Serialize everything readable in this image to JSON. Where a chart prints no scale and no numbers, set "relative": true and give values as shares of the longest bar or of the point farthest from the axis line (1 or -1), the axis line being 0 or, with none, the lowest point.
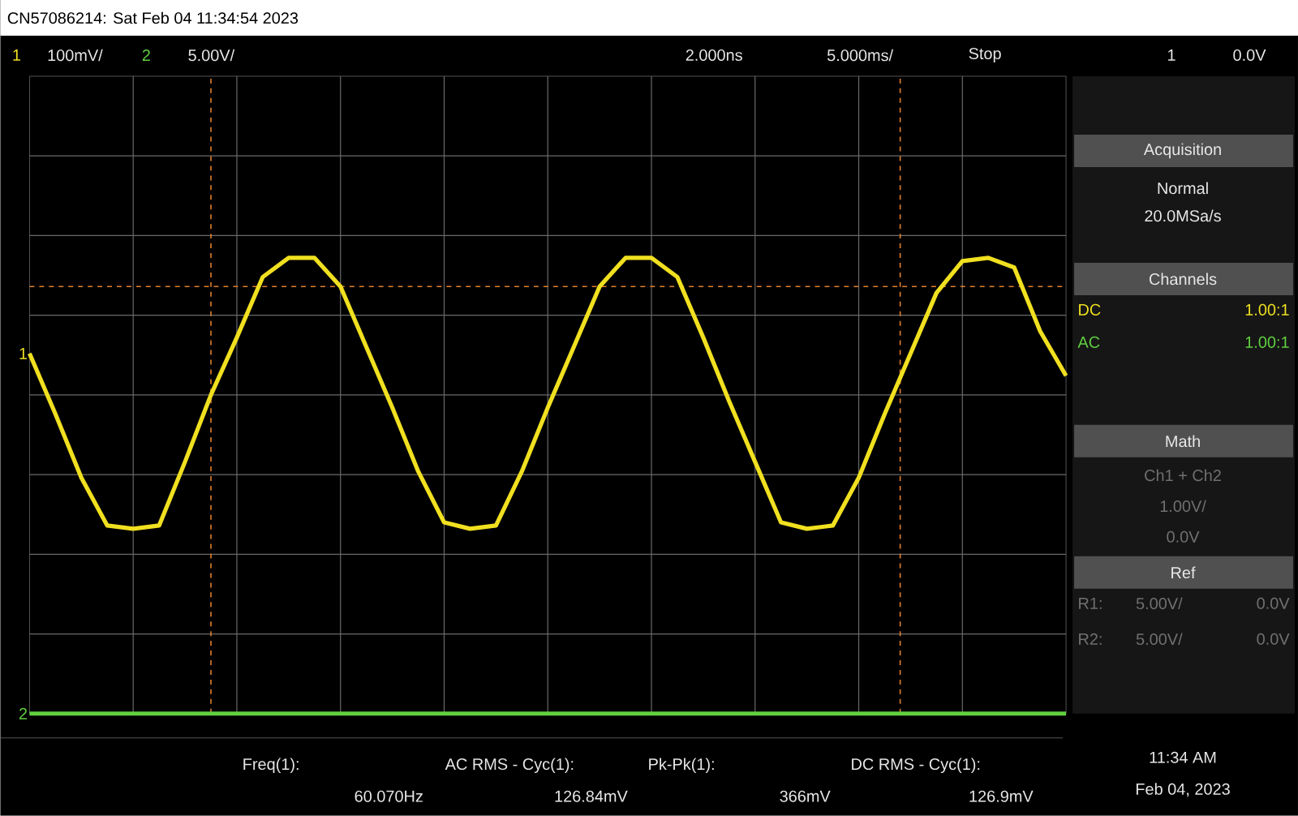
{
  "chart_data": {
    "type": "line",
    "relative": true,
    "title": "CN57086214: Sat Feb 04 11:34:54 2023",
    "categories": [
      null,
      null,
      null,
      null,
      null,
      null,
      null,
      null,
      null,
      null,
      null,
      null,
      null,
      null,
      null,
      null,
      null,
      null,
      null,
      null,
      null,
      null,
      null,
      null,
      null,
      null,
      null,
      null,
      null,
      null,
      null,
      null,
      null,
      null,
      null,
      null,
      null,
      null,
      null,
      null,
      null
    ],
    "series": [
      {
        "name": "1",
        "color": "#f0e020",
        "values": [
          0.13,
          -0.06,
          -0.26,
          -0.41,
          -0.42,
          -0.41,
          -0.21,
          0,
          0.18,
          0.37,
          0.43,
          0.43,
          0.34,
          0.15,
          -0.04,
          -0.24,
          -0.4,
          -0.42,
          -0.41,
          -0.24,
          -0.04,
          0.15,
          0.34,
          0.43,
          0.43,
          0.37,
          0.18,
          -0.02,
          -0.21,
          -0.4,
          -0.42,
          -0.41,
          -0.26,
          -0.06,
          0.13,
          0.32,
          0.42,
          0.43,
          0.4,
          0.2,
          0.06
        ]
      },
      {
        "name": "2",
        "color": "#60d040",
        "values": [
          -1,
          -1,
          -1,
          -1,
          -1,
          -1,
          -1,
          -1,
          -1,
          -1,
          -1,
          -1,
          -1,
          -1,
          -1,
          -1,
          -1,
          -1,
          -1,
          -1,
          -1,
          -1,
          -1,
          -1,
          -1,
          -1,
          -1,
          -1,
          -1,
          -1,
          -1,
          -1,
          -1,
          -1,
          -1,
          -1,
          -1,
          -1,
          -1,
          -1,
          -1
        ]
      }
    ],
    "ref_lines": [
      {
        "axis": "y",
        "value": 0.34,
        "color": "#e08030",
        "line_style": "dashed"
      }
    ],
    "grid": true,
    "legend": false,
    "marker": "none",
    "line_style": "solid",
    "annotations": [
      "1",
      "100mV/",
      "2",
      "5.00V/",
      "2.000ns",
      "5.000ms/",
      "Stop",
      "1",
      "0.0V",
      "Acquisition",
      "Normal",
      "20.0MSa/s",
      "Channels",
      "DC",
      "1.00:1",
      "AC",
      "1.00:1",
      "Math",
      "Ch1 + Ch2",
      "1.00V/",
      "0.0V",
      "Ref",
      "R1:",
      "5.00V/",
      "0.0V",
      "R2:",
      "5.00V/",
      "0.0V",
      "Freq(1):",
      "60.070Hz",
      "AC RMS - Cyc(1):",
      "126.84mV",
      "Pk-Pk(1):",
      "366mV",
      "DC RMS - Cyc(1):",
      "126.9mV",
      "11:34 AM",
      "Feb 04, 2023"
    ]
  }
}
